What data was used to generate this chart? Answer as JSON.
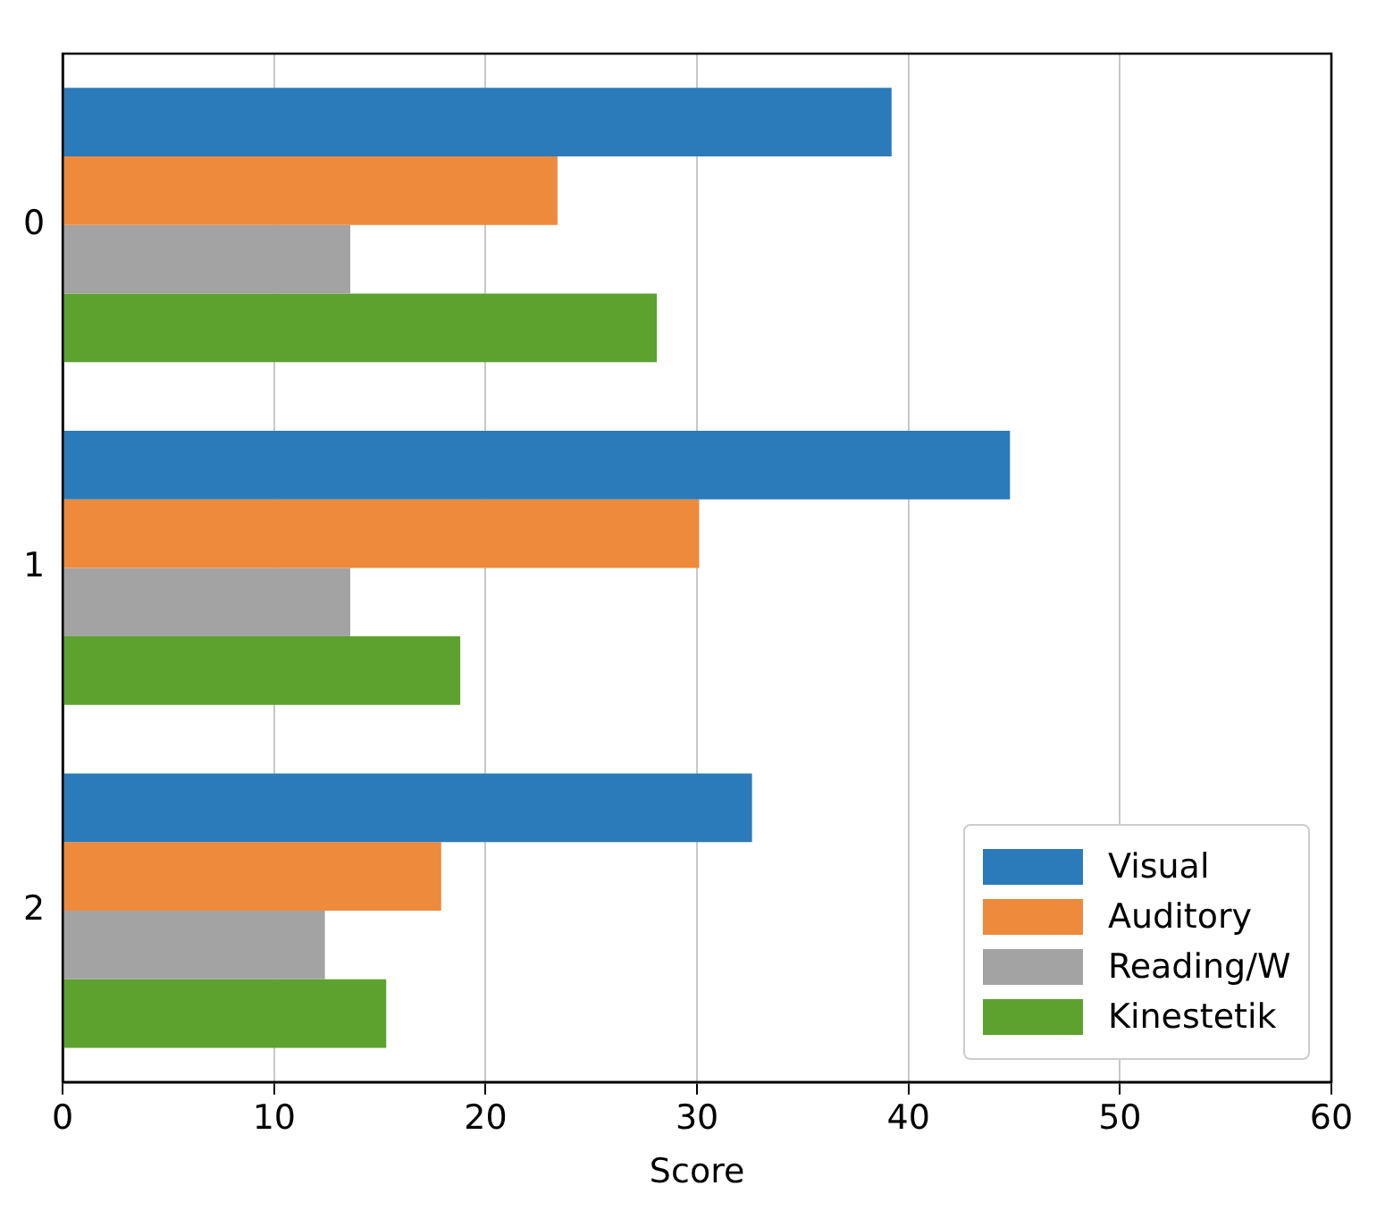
{
  "chart_data": {
    "type": "bar",
    "orientation": "horizontal",
    "xlabel": "Score",
    "categories": [
      "0",
      "1",
      "2"
    ],
    "series": [
      {
        "name": "Visual",
        "color": "#2b7bba",
        "values": [
          39.2,
          44.8,
          32.6
        ]
      },
      {
        "name": "Auditory",
        "color": "#ee8a3c",
        "values": [
          23.4,
          30.1,
          17.9
        ]
      },
      {
        "name": "Reading/W",
        "color": "#a3a3a3",
        "values": [
          13.6,
          13.6,
          12.4
        ]
      },
      {
        "name": "Kinestetik",
        "color": "#5da22f",
        "values": [
          28.1,
          18.8,
          15.3
        ]
      }
    ],
    "xlim": [
      0,
      60
    ],
    "xticks": [
      0,
      10,
      20,
      30,
      40,
      50,
      60
    ],
    "grid": "x",
    "legend": "bottom right"
  }
}
